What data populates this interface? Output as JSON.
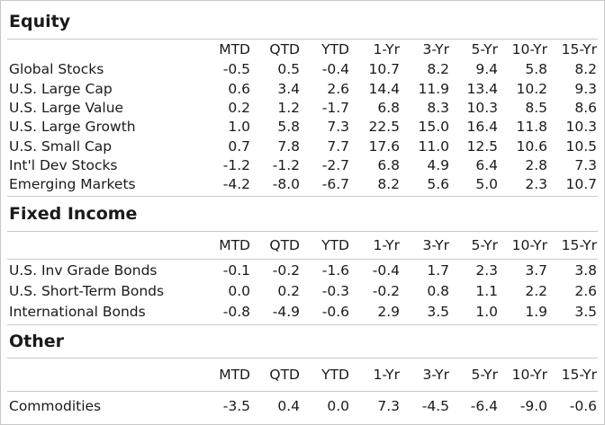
{
  "columns": [
    "MTD",
    "QTD",
    "YTD",
    "1-Yr",
    "3-Yr",
    "5-Yr",
    "10-Yr",
    "15-Yr"
  ],
  "sections": [
    {
      "title": "Equity",
      "rows": [
        {
          "label": "Global Stocks",
          "values": [
            "-0.5",
            "0.5",
            "-0.4",
            "10.7",
            "8.2",
            "9.4",
            "5.8",
            "8.2"
          ]
        },
        {
          "label": "U.S. Large Cap",
          "values": [
            "0.6",
            "3.4",
            "2.6",
            "14.4",
            "11.9",
            "13.4",
            "10.2",
            "9.3"
          ]
        },
        {
          "label": "U.S. Large Value",
          "values": [
            "0.2",
            "1.2",
            "-1.7",
            "6.8",
            "8.3",
            "10.3",
            "8.5",
            "8.6"
          ]
        },
        {
          "label": "U.S. Large Growth",
          "values": [
            "1.0",
            "5.8",
            "7.3",
            "22.5",
            "15.0",
            "16.4",
            "11.8",
            "10.3"
          ]
        },
        {
          "label": "U.S. Small Cap",
          "values": [
            "0.7",
            "7.8",
            "7.7",
            "17.6",
            "11.0",
            "12.5",
            "10.6",
            "10.5"
          ]
        },
        {
          "label": "Int'l Dev Stocks",
          "values": [
            "-1.2",
            "-1.2",
            "-2.7",
            "6.8",
            "4.9",
            "6.4",
            "2.8",
            "7.3"
          ]
        },
        {
          "label": "Emerging Markets",
          "values": [
            "-4.2",
            "-8.0",
            "-6.7",
            "8.2",
            "5.6",
            "5.0",
            "2.3",
            "10.7"
          ]
        }
      ]
    },
    {
      "title": "Fixed Income",
      "rows": [
        {
          "label": "U.S. Inv Grade Bonds",
          "values": [
            "-0.1",
            "-0.2",
            "-1.6",
            "-0.4",
            "1.7",
            "2.3",
            "3.7",
            "3.8"
          ]
        },
        {
          "label": "U.S. Short-Term Bonds",
          "values": [
            "0.0",
            "0.2",
            "-0.3",
            "-0.2",
            "0.8",
            "1.1",
            "2.2",
            "2.6"
          ]
        },
        {
          "label": "International Bonds",
          "values": [
            "-0.8",
            "-4.9",
            "-0.6",
            "2.9",
            "3.5",
            "1.0",
            "1.9",
            "3.5"
          ]
        }
      ]
    },
    {
      "title": "Other",
      "rows": [
        {
          "label": "Commodities",
          "values": [
            "-3.5",
            "0.4",
            "0.0",
            "7.3",
            "-4.5",
            "-6.4",
            "-9.0",
            "-0.6"
          ]
        }
      ]
    }
  ]
}
